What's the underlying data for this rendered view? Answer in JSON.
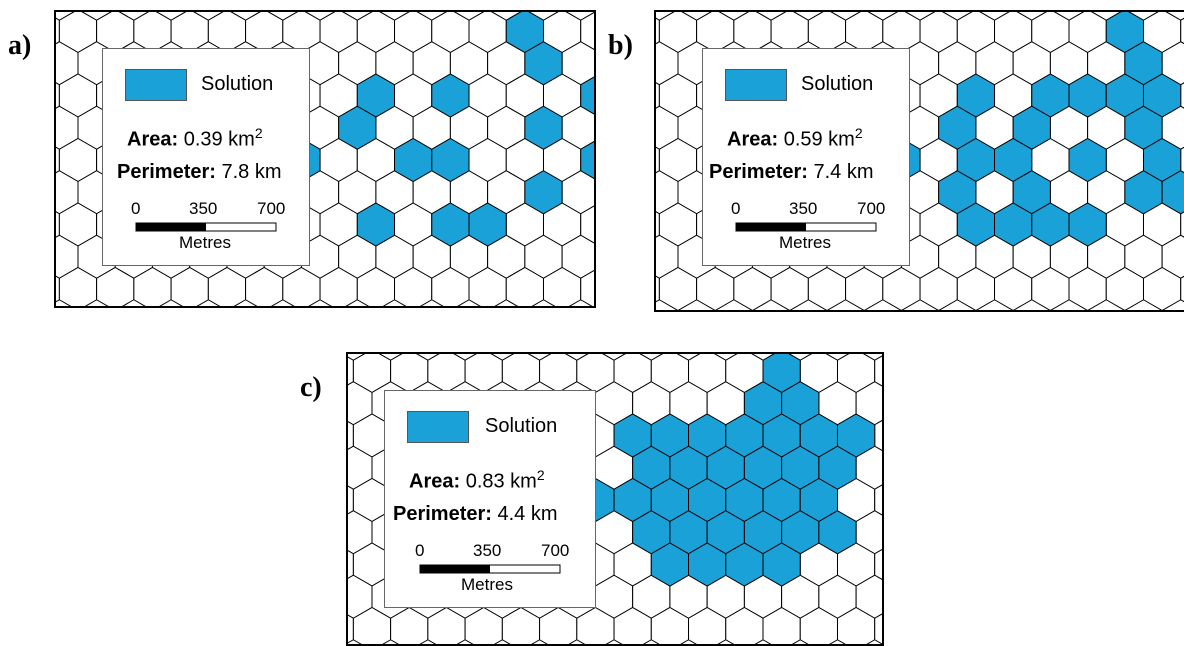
{
  "colors": {
    "solution": "#1aa2d8",
    "cell_stroke": "#000000"
  },
  "panels": [
    {
      "label": "a)",
      "legend": {
        "solution_label": "Solution",
        "area_key": "Area:",
        "area_value": "0.39 km",
        "area_sup": "2",
        "perimeter_key": "Perimeter:",
        "perimeter_value": "7.8 km",
        "scale_ticks": [
          "0",
          "350",
          "700"
        ],
        "scale_unit": "Metres"
      },
      "solution_cells": [
        [
          12,
          0
        ],
        [
          12,
          1
        ],
        [
          8,
          2
        ],
        [
          10,
          2
        ],
        [
          14,
          2
        ],
        [
          7,
          3
        ],
        [
          12,
          3
        ],
        [
          6,
          4
        ],
        [
          9,
          4
        ],
        [
          10,
          4
        ],
        [
          14,
          4
        ],
        [
          12,
          5
        ],
        [
          8,
          6
        ],
        [
          10,
          6
        ],
        [
          11,
          6
        ]
      ]
    },
    {
      "label": "b)",
      "legend": {
        "solution_label": "Solution",
        "area_key": "Area:",
        "area_value": "0.59 km",
        "area_sup": "2",
        "perimeter_key": "Perimeter:",
        "perimeter_value": "7.4 km",
        "scale_ticks": [
          "0",
          "350",
          "700"
        ],
        "scale_unit": "Metres"
      },
      "solution_cells": [
        [
          12,
          0
        ],
        [
          12,
          1
        ],
        [
          8,
          2
        ],
        [
          10,
          2
        ],
        [
          11,
          2
        ],
        [
          12,
          2
        ],
        [
          13,
          2
        ],
        [
          7,
          3
        ],
        [
          9,
          3
        ],
        [
          12,
          3
        ],
        [
          6,
          4
        ],
        [
          8,
          4
        ],
        [
          9,
          4
        ],
        [
          11,
          4
        ],
        [
          13,
          4
        ],
        [
          7,
          5
        ],
        [
          9,
          5
        ],
        [
          12,
          5
        ],
        [
          13,
          5
        ],
        [
          8,
          6
        ],
        [
          9,
          6
        ],
        [
          10,
          6
        ],
        [
          11,
          6
        ]
      ]
    },
    {
      "label": "c)",
      "legend": {
        "solution_label": "Solution",
        "area_key": "Area:",
        "area_value": "0.83 km",
        "area_sup": "2",
        "perimeter_key": "Perimeter:",
        "perimeter_value": "4.4 km",
        "scale_ticks": [
          "0",
          "350",
          "700"
        ],
        "scale_unit": "Metres"
      },
      "solution_cells": [
        [
          11,
          0
        ],
        [
          10,
          1
        ],
        [
          11,
          1
        ],
        [
          7,
          2
        ],
        [
          8,
          2
        ],
        [
          9,
          2
        ],
        [
          10,
          2
        ],
        [
          11,
          2
        ],
        [
          12,
          2
        ],
        [
          13,
          2
        ],
        [
          7,
          3
        ],
        [
          8,
          3
        ],
        [
          9,
          3
        ],
        [
          10,
          3
        ],
        [
          11,
          3
        ],
        [
          12,
          3
        ],
        [
          6,
          4
        ],
        [
          7,
          4
        ],
        [
          8,
          4
        ],
        [
          9,
          4
        ],
        [
          10,
          4
        ],
        [
          11,
          4
        ],
        [
          12,
          4
        ],
        [
          7,
          5
        ],
        [
          8,
          5
        ],
        [
          9,
          5
        ],
        [
          10,
          5
        ],
        [
          11,
          5
        ],
        [
          12,
          5
        ],
        [
          8,
          6
        ],
        [
          9,
          6
        ],
        [
          10,
          6
        ],
        [
          11,
          6
        ]
      ]
    }
  ]
}
